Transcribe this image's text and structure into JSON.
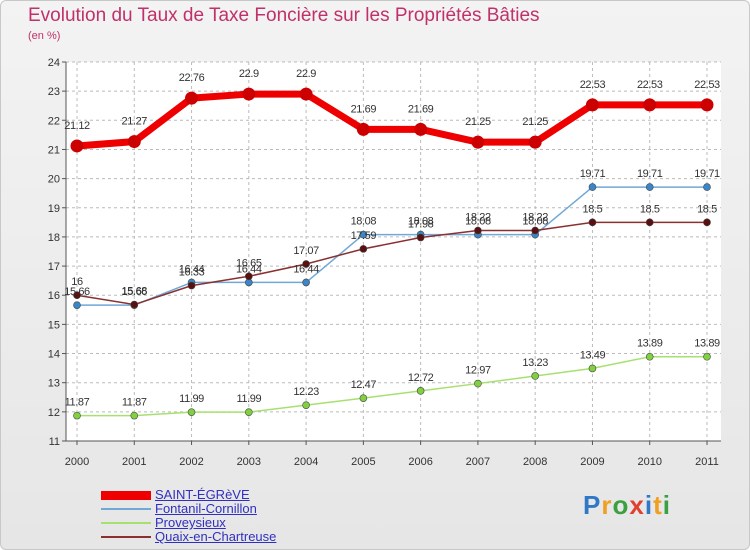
{
  "title": "Evolution du Taux de Taxe Foncière sur les Propriétés Bâties",
  "subtitle": "(en %)",
  "logo": [
    "P",
    "r",
    "o",
    "x",
    "i",
    "t",
    "i"
  ],
  "chart_data": {
    "type": "line",
    "title": "Evolution du Taux de Taxe Foncière sur les Propriétés Bâties",
    "ylabel": "(en %)",
    "xlabel": "",
    "ylim": [
      11,
      24
    ],
    "yticks": [
      11,
      12,
      13,
      14,
      15,
      16,
      17,
      18,
      19,
      20,
      21,
      22,
      23,
      24
    ],
    "categories": [
      "2000",
      "2001",
      "2002",
      "2003",
      "2004",
      "2005",
      "2006",
      "2007",
      "2008",
      "2009",
      "2010",
      "2011"
    ],
    "grid": true,
    "series": [
      {
        "name": "SAINT-ÉGRèVE",
        "color": "#ee0000",
        "marker": "#cc0000",
        "values": [
          21.12,
          21.27,
          22.76,
          22.9,
          22.9,
          21.69,
          21.69,
          21.25,
          21.25,
          22.53,
          22.53,
          22.53
        ],
        "labels": [
          "21.12",
          "21.27",
          "22.76",
          "22.9",
          "22.9",
          "21.69",
          "21.69",
          "21.25",
          "21.25",
          "22.53",
          "22.53",
          "22.53"
        ]
      },
      {
        "name": "Fontanil-Cornillon",
        "color": "#70a8d8",
        "marker": "#3a86c8",
        "values": [
          15.66,
          15.66,
          16.44,
          16.44,
          16.44,
          18.08,
          18.08,
          18.08,
          18.08,
          19.71,
          19.71,
          19.71
        ],
        "labels": [
          "15.66",
          "15.66",
          "16.44",
          "16.44",
          "16.44",
          "18.08",
          "18.08",
          "18.08",
          "18.08",
          "19.71",
          "19.71",
          "19.71"
        ]
      },
      {
        "name": "Proveysieux",
        "color": "#a8e070",
        "marker": "#80d040",
        "values": [
          11.87,
          11.87,
          11.99,
          11.99,
          12.23,
          12.47,
          12.72,
          12.97,
          13.23,
          13.49,
          13.89,
          13.89
        ],
        "labels": [
          "11.87",
          "11.87",
          "11.99",
          "11.99",
          "12.23",
          "12.47",
          "12.72",
          "12.97",
          "13.23",
          "13.49",
          "13.89",
          "13.89"
        ]
      },
      {
        "name": "Quaix-en-Chartreuse",
        "color": "#8a3030",
        "marker": "#5a1010",
        "values": [
          16,
          15.68,
          16.33,
          16.65,
          17.07,
          17.59,
          17.98,
          18.22,
          18.22,
          18.5,
          18.5,
          18.5
        ],
        "labels": [
          "16",
          "15.68",
          "16.33",
          "16.65",
          "17.07",
          "17.59",
          "17.98",
          "18.22",
          "18.22",
          "18.5",
          "18.5",
          "18.5"
        ]
      }
    ]
  }
}
